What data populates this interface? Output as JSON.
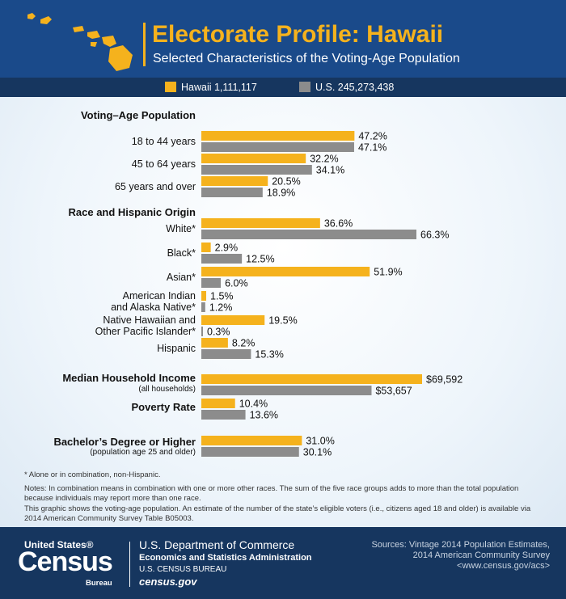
{
  "header": {
    "title": "Electorate Profile: Hawaii",
    "subtitle": "Selected Characteristics of the Voting-Age Population"
  },
  "legend": {
    "hawaii": "Hawaii 1,111,117",
    "us": "U.S. 245,273,438"
  },
  "colors": {
    "hawaii": "#f5b21d",
    "us": "#8c8c8c",
    "navy": "#1a4a8a"
  },
  "chart_data": {
    "type": "bar",
    "orientation": "horizontal",
    "series": [
      {
        "name": "Hawaii 1,111,117"
      },
      {
        "name": "U.S. 245,273,438"
      }
    ],
    "sections": [
      {
        "heading": "Voting–Age Population",
        "rows": [
          {
            "label": [
              "18 to 44 years"
            ],
            "hi": 47.2,
            "us": 47.1,
            "hi_text": "47.2%",
            "us_text": "47.1%"
          },
          {
            "label": [
              "45 to 64 years"
            ],
            "hi": 32.2,
            "us": 34.1,
            "hi_text": "32.2%",
            "us_text": "34.1%"
          },
          {
            "label": [
              "65 years and over"
            ],
            "hi": 20.5,
            "us": 18.9,
            "hi_text": "20.5%",
            "us_text": "18.9%"
          }
        ]
      },
      {
        "heading": "Race and Hispanic Origin",
        "rows": [
          {
            "label": [
              "White*"
            ],
            "hi": 36.6,
            "us": 66.3,
            "hi_text": "36.6%",
            "us_text": "66.3%"
          },
          {
            "label": [
              "Black*"
            ],
            "hi": 2.9,
            "us": 12.5,
            "hi_text": "2.9%",
            "us_text": "12.5%"
          },
          {
            "label": [
              "Asian*"
            ],
            "hi": 51.9,
            "us": 6.0,
            "hi_text": "51.9%",
            "us_text": "6.0%"
          },
          {
            "label": [
              "American Indian",
              "and Alaska Native*"
            ],
            "hi": 1.5,
            "us": 1.2,
            "hi_text": "1.5%",
            "us_text": "1.2%"
          },
          {
            "label": [
              "Native Hawaiian and",
              "Other Pacific Islander*"
            ],
            "hi": 19.5,
            "us": 0.3,
            "hi_text": "19.5%",
            "us_text": "0.3%"
          },
          {
            "label": [
              "Hispanic"
            ],
            "hi": 8.2,
            "us": 15.3,
            "hi_text": "8.2%",
            "us_text": "15.3%"
          }
        ]
      },
      {
        "heading": "Median Household Income",
        "subheading": "(all households)",
        "rows": [
          {
            "label": [],
            "hi": 69592,
            "us": 53657,
            "hi_text": "$69,592",
            "us_text": "$53,657"
          }
        ]
      },
      {
        "heading": "Poverty Rate",
        "rows": [
          {
            "label": [],
            "hi": 10.4,
            "us": 13.6,
            "hi_text": "10.4%",
            "us_text": "13.6%"
          }
        ]
      },
      {
        "heading": "Bachelor’s Degree or Higher",
        "subheading": "(population age 25 and older)",
        "rows": [
          {
            "label": [],
            "hi": 31.0,
            "us": 30.1,
            "hi_text": "31.0%",
            "us_text": "30.1%"
          }
        ]
      }
    ]
  },
  "footnotes": {
    "asterisk": "* Alone or in combination, non-Hispanic.",
    "notes": "Notes: In combination means in combination with one or more other races. The sum of the five race groups adds to more than the total population because individuals may report more than one race.",
    "voting": "This graphic shows the voting-age population. An estimate of the number of the state’s eligible voters (i.e., citizens aged 18 and older) is available via 2014 American Community Survey Table B05003."
  },
  "footer": {
    "census_top": "United States®",
    "census_main": "Census",
    "census_bottom": "Bureau",
    "dept": "U.S. Department of Commerce",
    "esa": "Economics and Statistics Administration",
    "bureau": "U.S. CENSUS BUREAU",
    "site": "census.gov",
    "sources": [
      "Sources: Vintage 2014 Population Estimates,",
      "2014 American Community Survey",
      "<www.census.gov/acs>"
    ]
  }
}
